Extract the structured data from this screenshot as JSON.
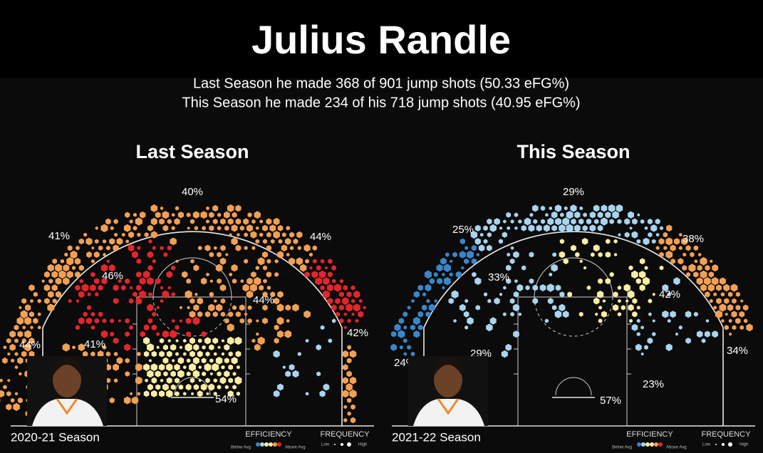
{
  "header": {
    "title": "Julius Randle",
    "subtitle": [
      "Last Season he made 368 of 901 jump shots (50.33 eFG%)",
      "This Season he made 234 of his 718 jump shots (40.95 eFG%)"
    ]
  },
  "courts": [
    {
      "heading": "Last Season",
      "season": "2020-21 Season",
      "zones": [
        "40%",
        "41%",
        "44%",
        "46%",
        "44%",
        "41%",
        "44%",
        "42%",
        "54%"
      ],
      "legend": {
        "efficiency": "EFFICIENCY",
        "below": "Below Avg",
        "above": "Above Avg",
        "frequency": "FREQUENCY",
        "low": "Low",
        "high": "High"
      }
    },
    {
      "heading": "This Season",
      "season": "2021-22 Season",
      "zones": [
        "29%",
        "25%",
        "38%",
        "33%",
        "42%",
        "29%",
        "24%",
        "34%",
        "23%",
        "57%"
      ],
      "legend": {
        "efficiency": "EFFICIENCY",
        "below": "Below Avg",
        "above": "Above Avg",
        "frequency": "FREQUENCY",
        "low": "Low",
        "high": "High"
      }
    }
  ]
}
